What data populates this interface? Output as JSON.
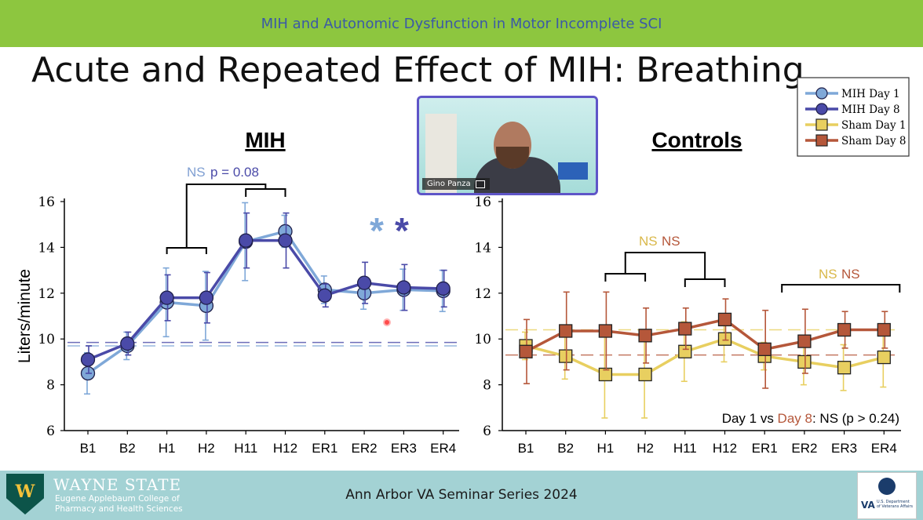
{
  "header": {
    "banner": "MIH and Autonomic Dysfunction in Motor Incomplete SCI"
  },
  "slide": {
    "title": "Acute and Repeated Effect of MIH: Breathing"
  },
  "colors": {
    "mih_day1": "#7fa8d8",
    "mih_day8": "#4a4aa8",
    "sham_day1": "#e8cf60",
    "sham_day8": "#b5573a"
  },
  "video": {
    "participant_name": "Gino Panza",
    "icon": "screen-share-icon"
  },
  "footer": {
    "university": "WAYNE STATE",
    "college_line1": "Eugene Applebaum College of",
    "college_line2": "Pharmacy and Health Sciences",
    "seminar": "Ann Arbor VA Seminar Series 2024",
    "va_mark": "VA",
    "va_dept_line1": "U.S. Department",
    "va_dept_line2": "of Veterans Affairs"
  },
  "chart_data": [
    {
      "type": "line",
      "title": "MIH",
      "ylabel": "Liters/minute",
      "ylim": [
        6,
        16
      ],
      "yticks": [
        "6",
        "8",
        "10",
        "12",
        "14",
        "16"
      ],
      "categories": [
        "B1",
        "B2",
        "H1",
        "H2",
        "H11",
        "H12",
        "ER1",
        "ER2",
        "ER3",
        "ER4"
      ],
      "baselines": [
        9.7,
        9.85
      ],
      "series": [
        {
          "name": "MIH Day 1",
          "color": "#7fa8d8",
          "values": [
            8.5,
            9.7,
            11.6,
            11.45,
            14.25,
            14.7,
            12.15,
            12.0,
            12.15,
            12.1
          ],
          "err": [
            0.9,
            0.6,
            1.5,
            1.5,
            1.7,
            0.7,
            0.6,
            0.7,
            0.9,
            0.9
          ]
        },
        {
          "name": "MIH Day 8",
          "color": "#4a4aa8",
          "values": [
            9.1,
            9.8,
            11.8,
            11.8,
            14.3,
            14.3,
            11.9,
            12.45,
            12.25,
            12.2
          ],
          "err": [
            0.6,
            0.5,
            1.0,
            1.1,
            1.2,
            1.2,
            0.5,
            0.9,
            1.0,
            0.8
          ]
        }
      ],
      "annotations": {
        "ns": "NS",
        "p_value": "p = 0.08",
        "star_day1": "*",
        "star_day8": "*"
      }
    },
    {
      "type": "line",
      "title": "Controls",
      "ylim": [
        6,
        16
      ],
      "yticks": [
        "6",
        "8",
        "10",
        "12",
        "14",
        "16"
      ],
      "categories": [
        "B1",
        "B2",
        "H1",
        "H2",
        "H11",
        "H12",
        "ER1",
        "ER2",
        "ER3",
        "ER4"
      ],
      "baselines": [
        10.4,
        9.3
      ],
      "series": [
        {
          "name": "Sham Day 1",
          "color": "#e8cf60",
          "values": [
            9.7,
            9.25,
            8.45,
            8.45,
            9.45,
            10.0,
            9.25,
            9.0,
            8.75,
            9.2
          ],
          "err": [
            0.6,
            1.0,
            1.9,
            1.9,
            1.3,
            1.0,
            0.6,
            1.0,
            1.0,
            1.3
          ]
        },
        {
          "name": "Sham Day 8",
          "color": "#b5573a",
          "values": [
            9.45,
            10.35,
            10.35,
            10.15,
            10.45,
            10.85,
            9.55,
            9.9,
            10.4,
            10.4
          ],
          "err": [
            1.4,
            1.7,
            1.7,
            1.2,
            0.9,
            0.9,
            1.7,
            1.4,
            0.8,
            0.8
          ]
        }
      ],
      "annotations": {
        "ns_left_1": "NS",
        "ns_left_2": "NS",
        "ns_right_1": "NS",
        "ns_right_2": "NS",
        "comparison_prefix": "Day 1 vs ",
        "comparison_day8": "Day 8",
        "comparison_suffix": ": NS (p > 0.24)"
      }
    }
  ],
  "legend": {
    "placement": "top-right",
    "items": [
      {
        "label": "MIH Day 1",
        "color": "#7fa8d8",
        "shape": "circle"
      },
      {
        "label": "MIH Day 8",
        "color": "#4a4aa8",
        "shape": "circle"
      },
      {
        "label": "Sham Day 1",
        "color": "#e8cf60",
        "shape": "square"
      },
      {
        "label": "Sham Day 8",
        "color": "#b5573a",
        "shape": "square"
      }
    ]
  }
}
